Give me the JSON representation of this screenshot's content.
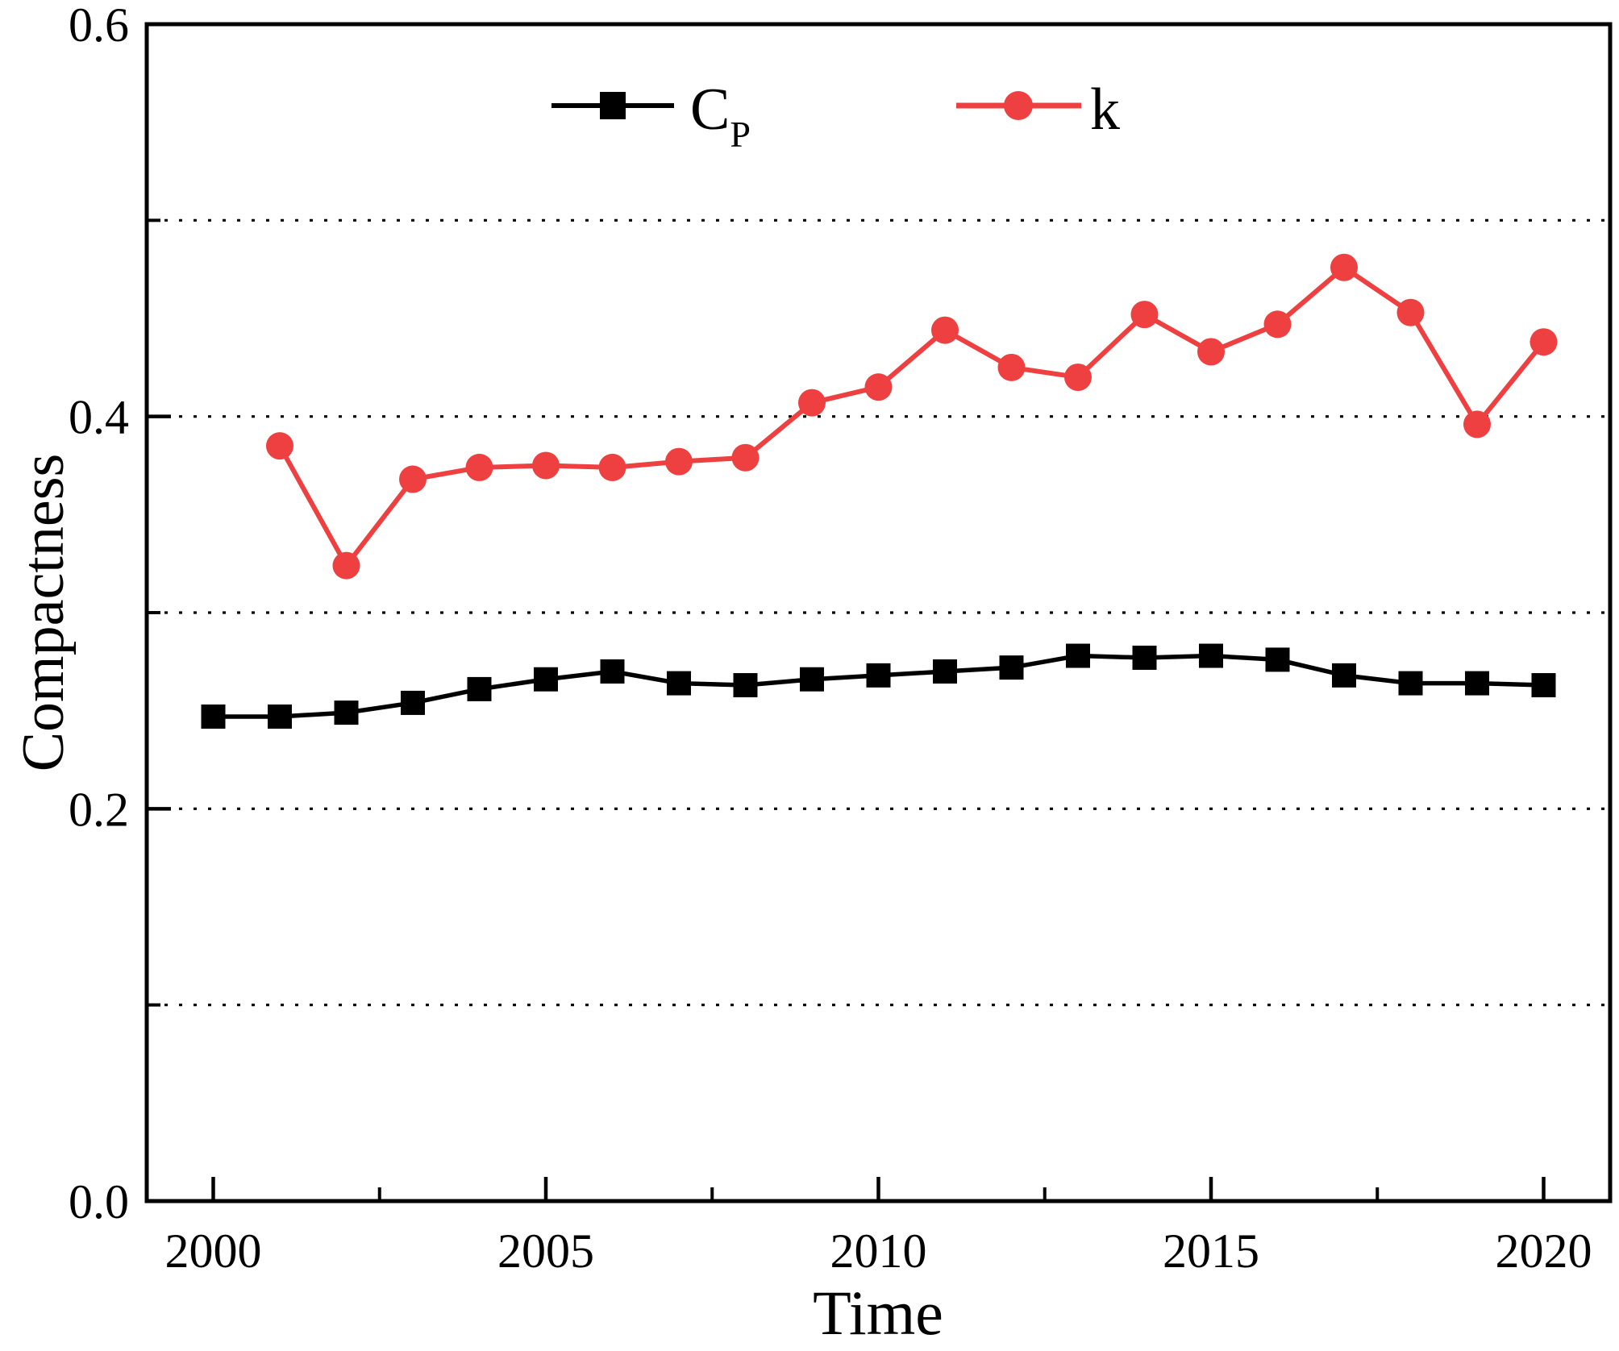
{
  "chart_data": {
    "type": "line",
    "title": "",
    "xlabel": "Time",
    "ylabel": "Compactness",
    "xlim": [
      1999,
      2021
    ],
    "ylim": [
      0.0,
      0.6
    ],
    "grid": "dotted-horizontal",
    "gridlines_y": [
      0.1,
      0.2,
      0.3,
      0.4,
      0.5
    ],
    "x_major_ticks": [
      2000,
      2005,
      2010,
      2015,
      2020
    ],
    "x_tick_labels": [
      "2000",
      "2005",
      "2010",
      "2015",
      "2020"
    ],
    "x_minor_ticks": [
      2002.5,
      2007.5,
      2012.5,
      2017.5
    ],
    "y_major_ticks": [
      0.0,
      0.2,
      0.4,
      0.6
    ],
    "y_tick_labels": [
      "0.0",
      "0.2",
      "0.4",
      "0.6"
    ],
    "y_minor_ticks": [
      0.1,
      0.3,
      0.5
    ],
    "legend_position": "top-center-inside",
    "axis_color": "#000000",
    "series": [
      {
        "name": "C_P",
        "label_main": "C",
        "label_sub": "P",
        "color": "#000000",
        "marker": "square",
        "x": [
          2000,
          2001,
          2002,
          2003,
          2004,
          2005,
          2006,
          2007,
          2008,
          2009,
          2010,
          2011,
          2012,
          2013,
          2014,
          2015,
          2016,
          2017,
          2018,
          2019,
          2020
        ],
        "values": [
          0.247,
          0.247,
          0.249,
          0.254,
          0.261,
          0.266,
          0.27,
          0.264,
          0.263,
          0.266,
          0.268,
          0.27,
          0.272,
          0.278,
          0.277,
          0.278,
          0.276,
          0.268,
          0.264,
          0.264,
          0.263
        ]
      },
      {
        "name": "k",
        "label_main": "k",
        "label_sub": "",
        "color": "#ee4040",
        "marker": "circle",
        "x": [
          2001,
          2002,
          2003,
          2004,
          2005,
          2006,
          2007,
          2008,
          2009,
          2010,
          2011,
          2012,
          2013,
          2014,
          2015,
          2016,
          2017,
          2018,
          2019,
          2020
        ],
        "values": [
          0.385,
          0.324,
          0.368,
          0.374,
          0.375,
          0.374,
          0.377,
          0.379,
          0.407,
          0.415,
          0.444,
          0.425,
          0.42,
          0.452,
          0.433,
          0.447,
          0.476,
          0.453,
          0.396,
          0.438
        ]
      }
    ]
  }
}
